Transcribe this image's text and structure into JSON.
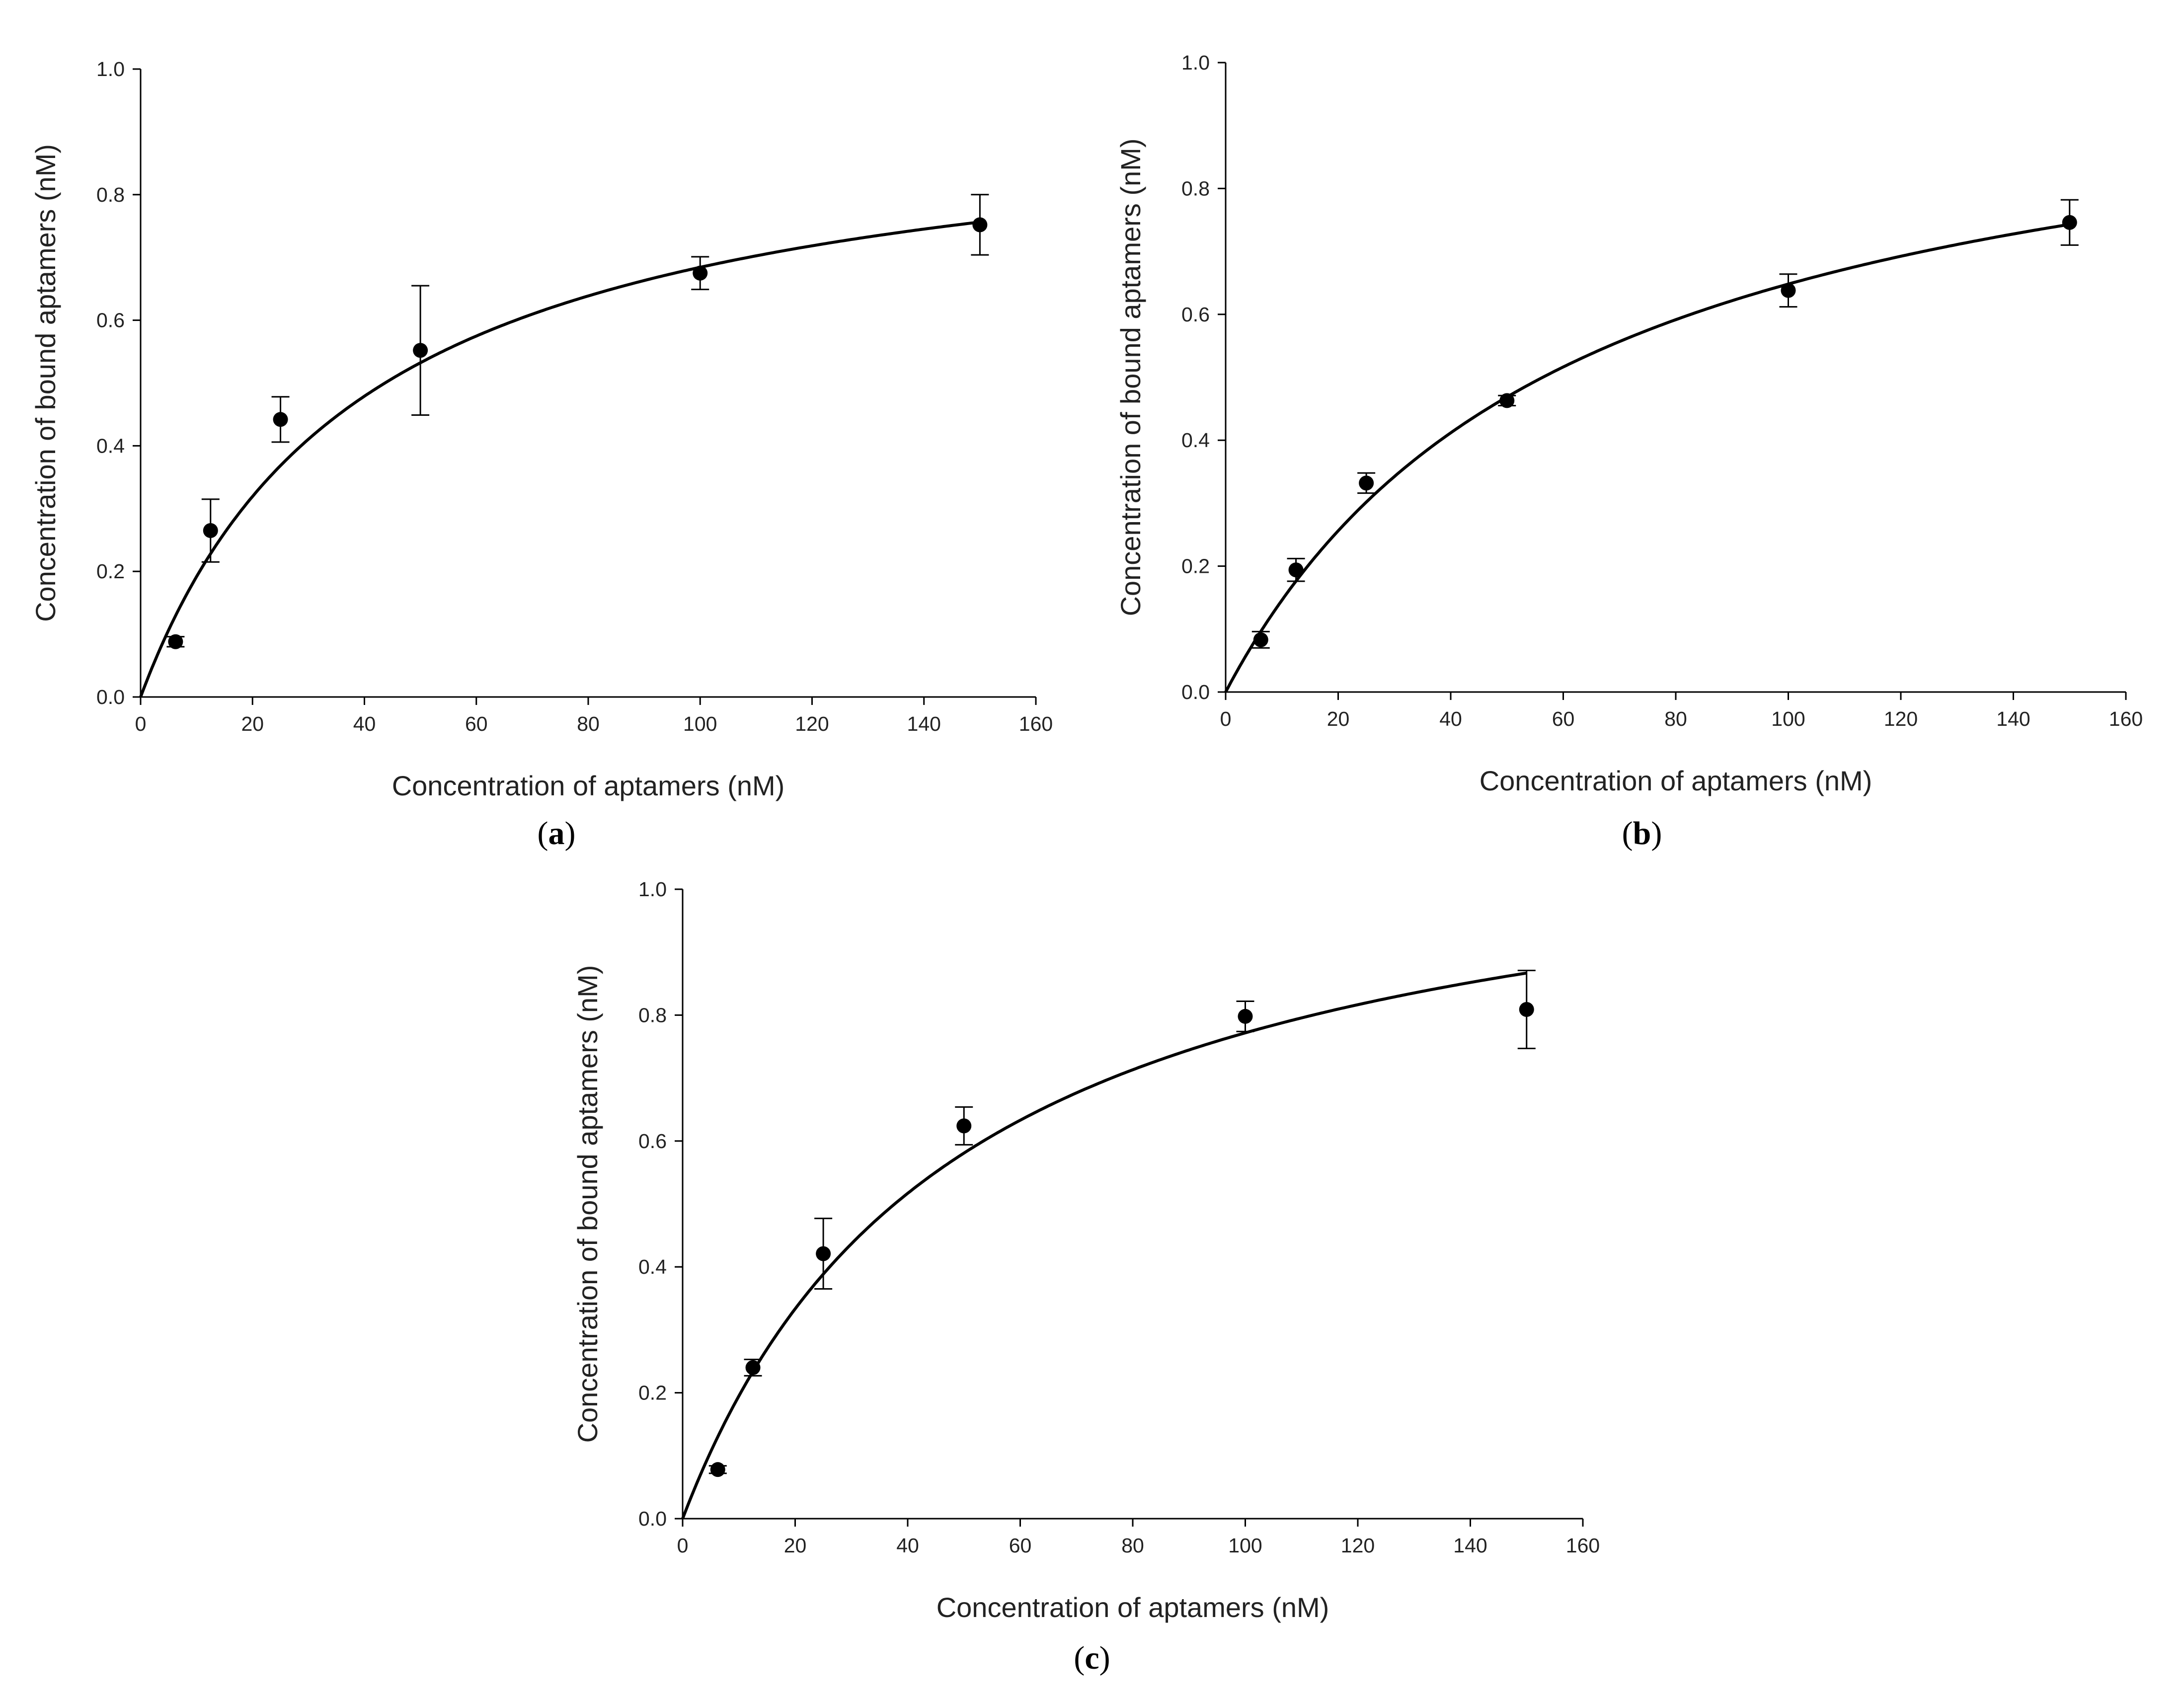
{
  "chart_data": [
    {
      "panel": "a",
      "type": "scatter",
      "xlabel": "Concentration of aptamers (nM)",
      "ylabel": "Concentration of bound aptamers (nM)",
      "xlim": [
        0,
        160
      ],
      "ylim": [
        0,
        1.0
      ],
      "xticks": [
        "0",
        "20",
        "40",
        "60",
        "80",
        "100",
        "120",
        "140",
        "160"
      ],
      "yticks": [
        "0.0",
        "0.2",
        "0.4",
        "0.6",
        "0.8",
        "1.0"
      ],
      "grid": false,
      "points": [
        {
          "x": 6.25,
          "y": 0.088,
          "err": 0.008
        },
        {
          "x": 12.5,
          "y": 0.265,
          "err": 0.05
        },
        {
          "x": 25,
          "y": 0.442,
          "err": 0.036
        },
        {
          "x": 50,
          "y": 0.552,
          "err": 0.103
        },
        {
          "x": 100,
          "y": 0.675,
          "err": 0.026
        },
        {
          "x": 150,
          "y": 0.752,
          "err": 0.048
        }
      ],
      "fit": {
        "model": "one-site saturation",
        "bmax": 0.958,
        "kd": 40.0
      }
    },
    {
      "panel": "b",
      "type": "scatter",
      "xlabel": "Concentration of aptamers (nM)",
      "ylabel": "Concentration of bound aptamers (nM)",
      "xlim": [
        0,
        160
      ],
      "ylim": [
        0,
        1.0
      ],
      "xticks": [
        "0",
        "20",
        "40",
        "60",
        "80",
        "100",
        "120",
        "140",
        "160"
      ],
      "yticks": [
        "0.0",
        "0.2",
        "0.4",
        "0.6",
        "0.8",
        "1.0"
      ],
      "grid": false,
      "points": [
        {
          "x": 6.25,
          "y": 0.083,
          "err": 0.013
        },
        {
          "x": 12.5,
          "y": 0.194,
          "err": 0.018
        },
        {
          "x": 25,
          "y": 0.332,
          "err": 0.016
        },
        {
          "x": 50,
          "y": 0.463,
          "err": 0.008
        },
        {
          "x": 100,
          "y": 0.638,
          "err": 0.026
        },
        {
          "x": 150,
          "y": 0.746,
          "err": 0.036
        }
      ],
      "fit": {
        "model": "one-site saturation",
        "bmax": 1.05,
        "kd": 62.0
      }
    },
    {
      "panel": "c",
      "type": "scatter",
      "xlabel": "Concentration of aptamers (nM)",
      "ylabel": "Concentration of bound aptamers (nM)",
      "xlim": [
        0,
        160
      ],
      "ylim": [
        0,
        1.0
      ],
      "xticks": [
        "0",
        "20",
        "40",
        "60",
        "80",
        "100",
        "120",
        "140",
        "160"
      ],
      "yticks": [
        "0.0",
        "0.2",
        "0.4",
        "0.6",
        "0.8",
        "1.0"
      ],
      "grid": false,
      "points": [
        {
          "x": 6.25,
          "y": 0.078,
          "err": 0.006
        },
        {
          "x": 12.5,
          "y": 0.24,
          "err": 0.013
        },
        {
          "x": 25,
          "y": 0.421,
          "err": 0.056
        },
        {
          "x": 50,
          "y": 0.624,
          "err": 0.03
        },
        {
          "x": 100,
          "y": 0.798,
          "err": 0.024
        },
        {
          "x": 150,
          "y": 0.809,
          "err": 0.062
        }
      ],
      "fit": {
        "model": "one-site saturation",
        "bmax": 1.15,
        "kd": 49.0
      }
    }
  ],
  "captions": {
    "a": "a",
    "b": "b",
    "c": "c"
  }
}
